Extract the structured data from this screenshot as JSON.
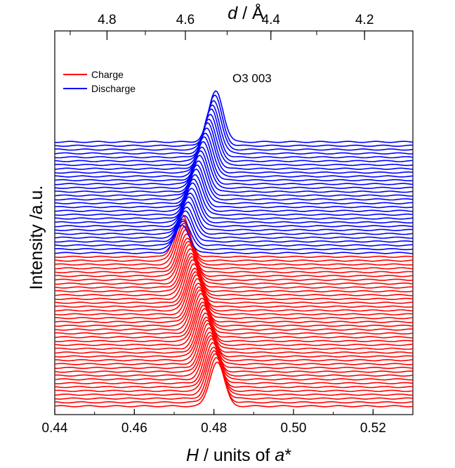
{
  "chart_data": {
    "type": "line",
    "title": "",
    "xlabel": {
      "italic": "H",
      "rest": " / units of ",
      "italic2": "a",
      "suffix": "*"
    },
    "ylabel": "Intensity /a.u.",
    "top_axis_label": {
      "italic": "d",
      "rest": " / Å"
    },
    "xlim": [
      0.44,
      0.53
    ],
    "x_ticks": [
      "0.44",
      "0.46",
      "0.48",
      "0.50",
      "0.52"
    ],
    "x_tick_values": [
      0.44,
      0.46,
      0.48,
      0.5,
      0.52
    ],
    "top_ticks": [
      "4.8",
      "4.6",
      "4.4",
      "4.2"
    ],
    "top_tick_values": [
      4.8,
      4.6,
      4.4,
      4.2
    ],
    "top_scale_A_per_H": 2.175,
    "grid": false,
    "legend_position": "top-left",
    "annotation": "O3 003",
    "series": [
      {
        "name": "Charge",
        "color": "#ff0000",
        "count": 40,
        "peak_center_start": 0.4808,
        "peak_center_end": 0.472,
        "peak_height_start": 4.8,
        "peak_height_end": 4.5
      },
      {
        "name": "Discharge",
        "color": "#0000ff",
        "count": 30,
        "peak_center_start": 0.472,
        "peak_center_end": 0.4805,
        "peak_height_start": 3.0,
        "peak_height_end": 5.5
      }
    ]
  }
}
